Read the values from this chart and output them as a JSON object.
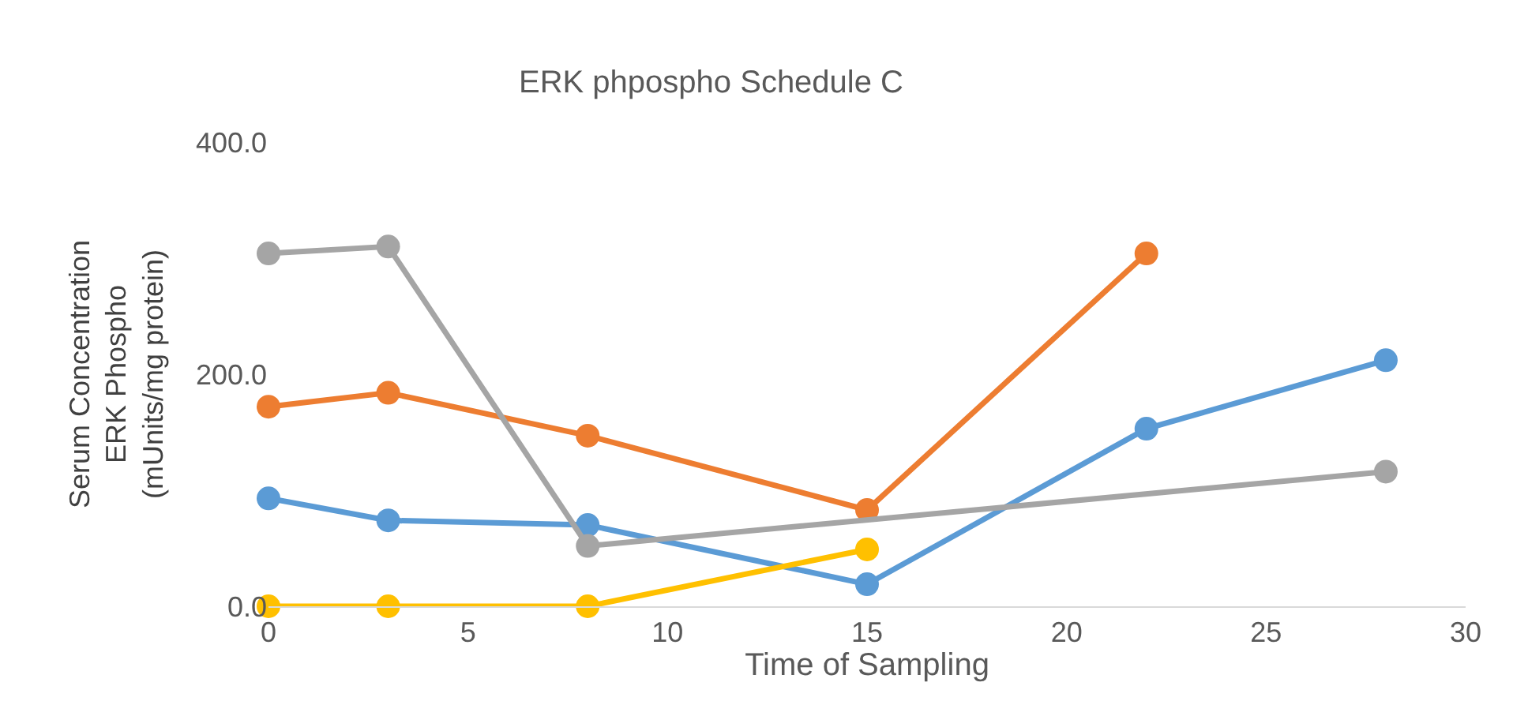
{
  "chart_data": {
    "type": "line",
    "title": "ERK phpospho Schedule C",
    "xlabel": "Time of Sampling",
    "ylabel": "Serum Concentration\nERK Phospho\n(mUnits/mg protein)",
    "xlim": [
      0,
      30
    ],
    "xticks": [
      0,
      5,
      10,
      15,
      20,
      25,
      30
    ],
    "ylim": [
      0,
      400
    ],
    "yticks": [
      {
        "value": 0,
        "label": "0.0"
      },
      {
        "value": 200,
        "label": "200.0"
      },
      {
        "value": 400,
        "label": "400.0"
      }
    ],
    "marker": "circle",
    "line_style": "solid",
    "series": [
      {
        "color": "#5b9bd5",
        "x": [
          0,
          3,
          8,
          15,
          22,
          28
        ],
        "values": [
          93,
          74,
          70,
          19,
          153,
          212
        ]
      },
      {
        "color": "#ed7d31",
        "x": [
          0,
          3,
          8,
          15,
          22
        ],
        "values": [
          172,
          184,
          147,
          83,
          304
        ]
      },
      {
        "color": "#a5a5a5",
        "x": [
          0,
          3,
          8,
          28
        ],
        "values": [
          304,
          310,
          52,
          116
        ]
      },
      {
        "color": "#ffc000",
        "x": [
          0,
          3,
          8,
          15
        ],
        "values": [
          0,
          0,
          0,
          49
        ]
      }
    ]
  }
}
